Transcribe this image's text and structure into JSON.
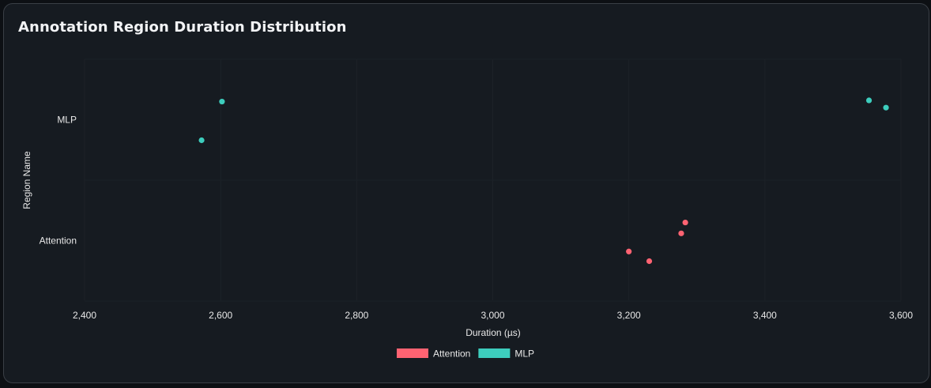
{
  "chart_data": {
    "type": "scatter",
    "title": "Annotation Region Duration Distribution",
    "xlabel": "Duration (µs)",
    "ylabel": "Region Name",
    "xlim": [
      2400,
      3600
    ],
    "x_ticks": [
      2400,
      2600,
      2800,
      3000,
      3200,
      3400,
      3600
    ],
    "x_tick_labels": [
      "2,400",
      "2,600",
      "2,800",
      "3,000",
      "3,200",
      "3,400",
      "3,600"
    ],
    "categories": [
      "MLP",
      "Attention"
    ],
    "grid": true,
    "legend_position": "bottom-center",
    "series": [
      {
        "name": "Attention",
        "color": "#ff6372",
        "points": [
          {
            "x": 3200,
            "y": "Attention",
            "jitter": -0.09
          },
          {
            "x": 3230,
            "y": "Attention",
            "jitter": -0.17
          },
          {
            "x": 3277,
            "y": "Attention",
            "jitter": 0.06
          },
          {
            "x": 3283,
            "y": "Attention",
            "jitter": 0.15
          }
        ]
      },
      {
        "name": "MLP",
        "color": "#3dcdbd",
        "points": [
          {
            "x": 2572,
            "y": "MLP",
            "jitter": -0.17
          },
          {
            "x": 2602,
            "y": "MLP",
            "jitter": 0.15
          },
          {
            "x": 3553,
            "y": "MLP",
            "jitter": 0.16
          },
          {
            "x": 3578,
            "y": "MLP",
            "jitter": 0.1
          }
        ]
      }
    ]
  }
}
